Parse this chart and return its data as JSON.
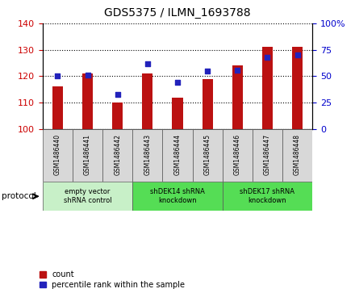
{
  "title": "GDS5375 / ILMN_1693788",
  "samples": [
    "GSM1486440",
    "GSM1486441",
    "GSM1486442",
    "GSM1486443",
    "GSM1486444",
    "GSM1486445",
    "GSM1486446",
    "GSM1486447",
    "GSM1486448"
  ],
  "counts": [
    116,
    121,
    110,
    121,
    112,
    119,
    124,
    131,
    131
  ],
  "percentiles": [
    50,
    51,
    33,
    62,
    44,
    55,
    56,
    68,
    70
  ],
  "ylim_left": [
    100,
    140
  ],
  "ylim_right": [
    0,
    100
  ],
  "yticks_left": [
    100,
    110,
    120,
    130,
    140
  ],
  "yticks_right": [
    0,
    25,
    50,
    75,
    100
  ],
  "bar_color": "#bb1111",
  "dot_color": "#2222bb",
  "bar_bottom": 100,
  "bar_width": 0.35,
  "groups": [
    {
      "label": "empty vector\nshRNA control",
      "start": 0,
      "end": 3,
      "color": "#c8f0c8"
    },
    {
      "label": "shDEK14 shRNA\nknockdown",
      "start": 3,
      "end": 6,
      "color": "#55dd55"
    },
    {
      "label": "shDEK17 shRNA\nknockdown",
      "start": 6,
      "end": 9,
      "color": "#55dd55"
    }
  ],
  "protocol_label": "protocol",
  "legend_count": "count",
  "legend_percentile": "percentile rank within the sample",
  "tick_label_color_left": "#cc0000",
  "tick_label_color_right": "#0000cc",
  "sample_box_color": "#d8d8d8",
  "right_axis_top_label": "100%"
}
